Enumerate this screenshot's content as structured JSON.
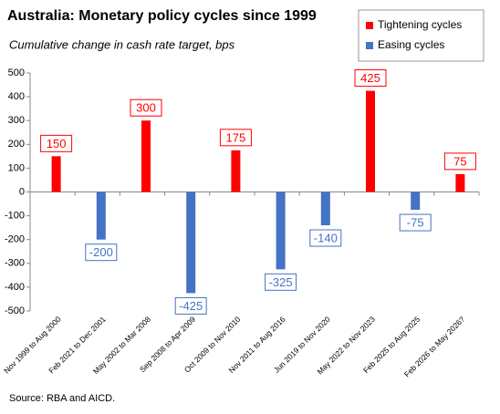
{
  "chart_data": {
    "type": "bar",
    "title": "Australia: Monetary policy cycles since 1999",
    "subtitle": "Cumulative change in cash rate target, bps",
    "source": "Source: RBA and AICD.",
    "categories": [
      "Nov 1999 to Aug 2000",
      "Feb 2021 to Dec 2001",
      "May 2002 to Mar 2008",
      "Sep 2008 to Apr 2009",
      "Oct 2009 to Nov 2010",
      "Nov 2011 to Aug 2016",
      "Jun 2019 to Nov 2020",
      "May 2022 to Nov 2023",
      "Feb 2025 to Aug 2025",
      "Feb 2026 to May 2026?"
    ],
    "series": [
      {
        "name": "Tightening cycles",
        "color": "#ff0000",
        "values": [
          150,
          null,
          300,
          null,
          175,
          null,
          null,
          425,
          null,
          75
        ]
      },
      {
        "name": "Easing cycles",
        "color": "#4472c4",
        "values": [
          null,
          -200,
          null,
          -425,
          null,
          -325,
          -140,
          null,
          -75,
          null
        ]
      }
    ],
    "ylim": [
      -500,
      500
    ],
    "yticks": [
      -500,
      -400,
      -300,
      -200,
      -100,
      0,
      100,
      200,
      300,
      400,
      500
    ],
    "grid": false,
    "legend": "top-right"
  }
}
